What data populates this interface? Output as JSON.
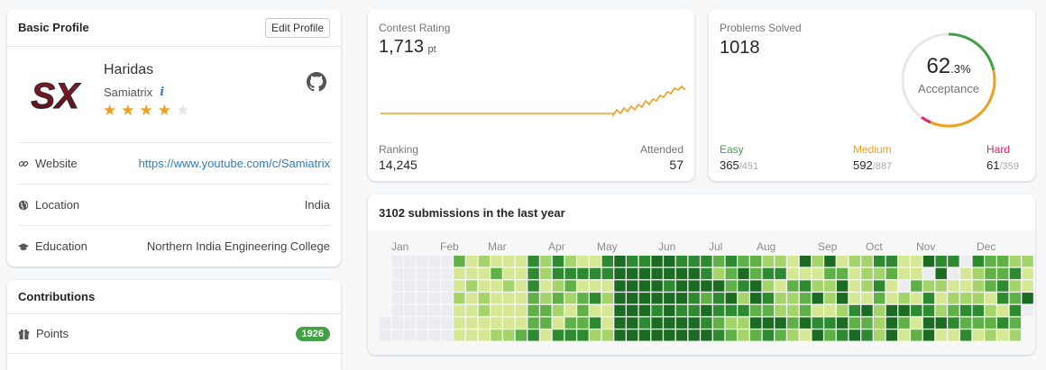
{
  "profile": {
    "header_title": "Basic Profile",
    "edit_label": "Edit Profile",
    "logo_text": "SX",
    "name": "Haridas",
    "username": "Samiatrix",
    "info_label": "i",
    "stars": [
      {
        "glyph": "★",
        "filled": true
      },
      {
        "glyph": "★",
        "filled": true
      },
      {
        "glyph": "★",
        "filled": true
      },
      {
        "glyph": "★",
        "filled": true
      },
      {
        "glyph": "★",
        "filled": false
      }
    ],
    "rows": [
      {
        "label": "Website",
        "value": "https://www.youtube.com/c/Samiatrix",
        "icon": "link-icon",
        "is_link": true
      },
      {
        "label": "Location",
        "value": "India",
        "icon": "globe-icon",
        "is_link": false
      },
      {
        "label": "Education",
        "value": "Northern India Engineering College",
        "icon": "graduation-cap-icon",
        "is_link": false
      }
    ]
  },
  "contributions": {
    "header_title": "Contributions",
    "points_label": "Points",
    "points_value": "1926",
    "points_icon": "gift-icon"
  },
  "contest": {
    "label": "Contest Rating",
    "value": "1,713",
    "unit": "pt",
    "ranking_label": "Ranking",
    "ranking_value": "14,245",
    "attended_label": "Attended",
    "attended_value": "57",
    "line_color": "#f0a020"
  },
  "problems": {
    "label": "Problems Solved",
    "value": "1018",
    "acceptance_int": "62",
    "acceptance_dec": ".3%",
    "acceptance_label": "Acceptance",
    "acceptance_fraction": 0.623,
    "easy": {
      "label": "Easy",
      "solved": "365",
      "sep": "/",
      "total": "451",
      "color": "#43a047"
    },
    "medium": {
      "label": "Medium",
      "solved": "592",
      "sep": "/",
      "total": "887",
      "color": "#f0a020"
    },
    "hard": {
      "label": "Hard",
      "solved": "61",
      "sep": "/",
      "total": "359",
      "color": "#e91e63"
    }
  },
  "submissions": {
    "title": "3102 submissions in the last year",
    "months": [
      "Jan",
      "Feb",
      "Mar",
      "Apr",
      "May",
      "Jun",
      "Jul",
      "Aug",
      "Sep",
      "Oct",
      "Nov",
      "Dec"
    ],
    "colors": [
      "#ebedf0",
      "#d7e895",
      "#a5d46b",
      "#5fb147",
      "#2e8a31",
      "#1c6b22"
    ]
  }
}
